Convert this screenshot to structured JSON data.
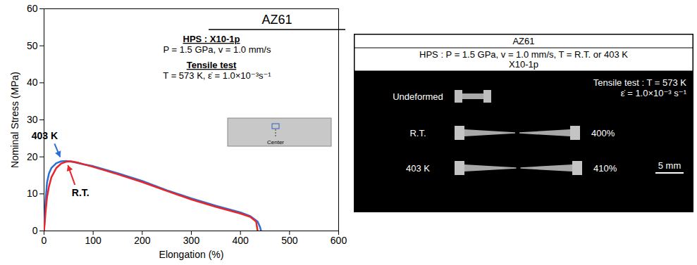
{
  "chart_data": {
    "type": "line",
    "title": "AZ61",
    "notes": [
      {
        "heading": "HPS : X10-1p",
        "lines": [
          "P = 1.5 GPa, v = 1.0 mm/s"
        ]
      },
      {
        "heading": "Tensile test",
        "lines": [
          "T = 573 K, ε̇ = 1.0×10⁻³s⁻¹"
        ]
      }
    ],
    "inset_label": "Center",
    "x_label": "Elongation (%)",
    "y_label": "Nominal Stress (MPa)",
    "xlim": [
      0,
      600
    ],
    "xticks": [
      0,
      100,
      200,
      300,
      400,
      500,
      600
    ],
    "ylim": [
      0,
      60
    ],
    "yticks": [
      0,
      10,
      20,
      30,
      40,
      50,
      60
    ],
    "grid": false,
    "series": [
      {
        "name": "403 K",
        "color": "#2a6fd6",
        "x": [
          0,
          3,
          6,
          10,
          15,
          25,
          35,
          45,
          60,
          80,
          100,
          150,
          200,
          250,
          300,
          350,
          400,
          420,
          435,
          440,
          442
        ],
        "values": [
          0,
          8,
          13,
          15.5,
          17,
          18.3,
          18.8,
          18.9,
          18.6,
          18,
          17.5,
          15.6,
          13.5,
          11,
          8.8,
          6.8,
          5,
          4,
          2.5,
          1,
          0
        ]
      },
      {
        "name": "R.T.",
        "color": "#e8262a",
        "x": [
          0,
          3,
          6,
          10,
          15,
          25,
          35,
          45,
          55,
          70,
          100,
          150,
          200,
          250,
          300,
          350,
          400,
          420,
          432,
          435
        ],
        "values": [
          0,
          5,
          9,
          12,
          14.5,
          17,
          18.2,
          18.7,
          18.8,
          18.4,
          17.3,
          15.3,
          13.2,
          10.8,
          8.5,
          6.5,
          4.7,
          3.8,
          2.5,
          0
        ]
      }
    ]
  },
  "photo_panel": {
    "header": {
      "title": "AZ61",
      "condition": "HPS : P = 1.5 GPa, v = 1.0 mm/s, T = R.T. or 403 K",
      "condition_2": "X10-1p"
    },
    "tensile_test": [
      "Tensile test : T = 573 K",
      "ε̇ = 1.0×10⁻³ s⁻¹"
    ],
    "specimens": [
      {
        "label": "Undeformed"
      },
      {
        "label": "R.T.",
        "elongation": {
          "value": 400,
          "label": "400%"
        }
      },
      {
        "label": "403 K",
        "elongation": {
          "value": 410,
          "label": "410%"
        }
      }
    ],
    "scale_bar": "5 mm"
  }
}
